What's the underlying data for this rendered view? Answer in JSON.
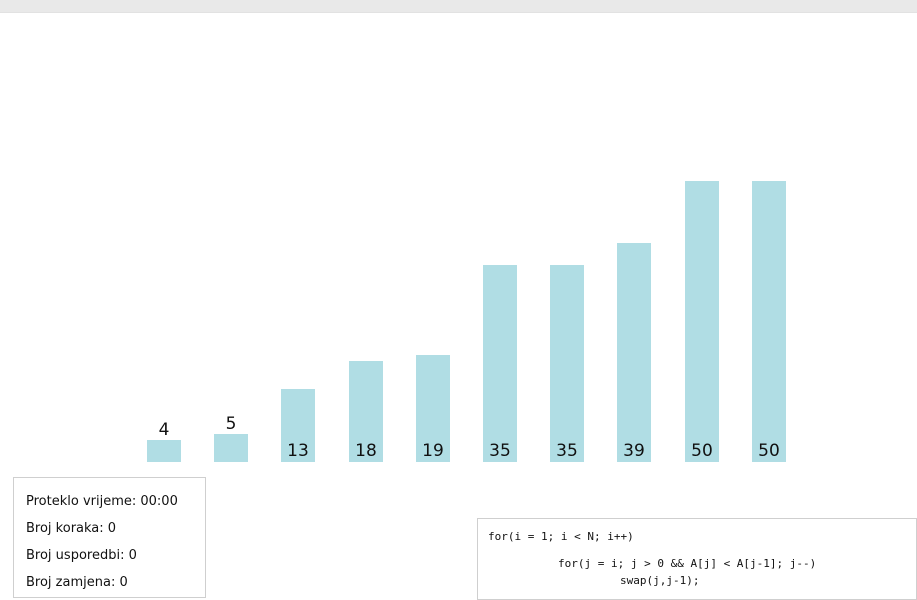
{
  "visualization": {
    "bars": [
      {
        "value": 4,
        "label": "4"
      },
      {
        "value": 5,
        "label": "5"
      },
      {
        "value": 13,
        "label": "13"
      },
      {
        "value": 18,
        "label": "18"
      },
      {
        "value": 19,
        "label": "19"
      },
      {
        "value": 35,
        "label": "35"
      },
      {
        "value": 35,
        "label": "35"
      },
      {
        "value": 39,
        "label": "39"
      },
      {
        "value": 50,
        "label": "50"
      },
      {
        "value": 50,
        "label": "50"
      }
    ],
    "bar_color": "#b0dde4"
  },
  "stats": {
    "elapsed_time": "Proteklo vrijeme: 00:00",
    "steps": "Broj koraka: 0",
    "comparisons": "Broj usporedbi: 0",
    "swaps": "Broj zamjena: 0"
  },
  "code": {
    "line1": "for(i = 1; i < N; i++)",
    "line2": "for(j = i; j > 0 && A[j] < A[j-1]; j--)",
    "line3": "swap(j,j-1);"
  }
}
